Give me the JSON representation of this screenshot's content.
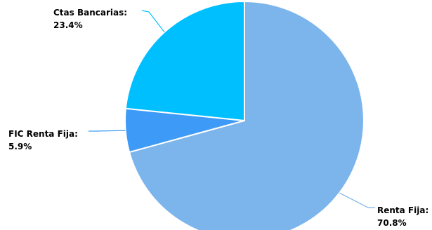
{
  "chart_data": {
    "type": "pie",
    "title": "",
    "start_angle_deg": 0,
    "direction": "clockwise",
    "slices": [
      {
        "name": "Renta Fija",
        "value": 70.8,
        "label": "Renta Fija:",
        "value_label": "70.8%",
        "color": "#7cb5ec"
      },
      {
        "name": "FIC Renta Fija",
        "value": 5.9,
        "label": "FIC Renta Fija:",
        "value_label": "5.9%",
        "color": "#3d9bf7"
      },
      {
        "name": "Ctas Bancarias",
        "value": 23.4,
        "label": "Ctas Bancarias:",
        "value_label": "23.4%",
        "color": "#00bfff"
      }
    ],
    "legend": "none"
  }
}
